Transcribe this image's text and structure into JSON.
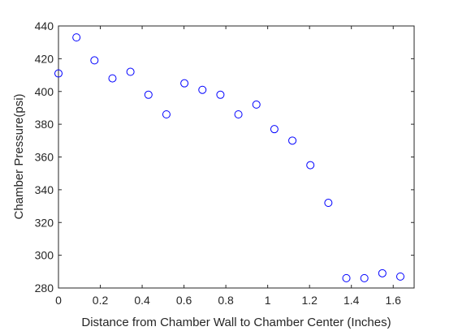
{
  "chart_data": {
    "type": "scatter",
    "title": "",
    "xlabel": "Distance from Chamber Wall to Chamber Center (Inches)",
    "ylabel": "Chamber Pressure(psi)",
    "xlim": [
      0,
      1.7
    ],
    "ylim": [
      280,
      440
    ],
    "xticks": [
      0,
      0.2,
      0.4,
      0.6,
      0.8,
      1,
      1.2,
      1.4,
      1.6
    ],
    "xtick_labels": [
      "0",
      "0.2",
      "0.4",
      "0.6",
      "0.8",
      "1",
      "1.2",
      "1.4",
      "1.6"
    ],
    "yticks": [
      280,
      300,
      320,
      340,
      360,
      380,
      400,
      420,
      440
    ],
    "ytick_labels": [
      "280",
      "300",
      "320",
      "340",
      "360",
      "380",
      "400",
      "420",
      "440"
    ],
    "grid": false,
    "marker": "open-circle",
    "marker_color": "#0000ff",
    "series": [
      {
        "x": [
          0.0,
          0.086,
          0.172,
          0.258,
          0.344,
          0.43,
          0.516,
          0.602,
          0.688,
          0.774,
          0.86,
          0.946,
          1.032,
          1.118,
          1.204,
          1.29,
          1.376,
          1.462,
          1.548,
          1.634
        ],
        "y": [
          411,
          433,
          419,
          408,
          412,
          398,
          386,
          405,
          401,
          398,
          386,
          392,
          377,
          370,
          355,
          332,
          286,
          286,
          289,
          287
        ]
      }
    ]
  }
}
